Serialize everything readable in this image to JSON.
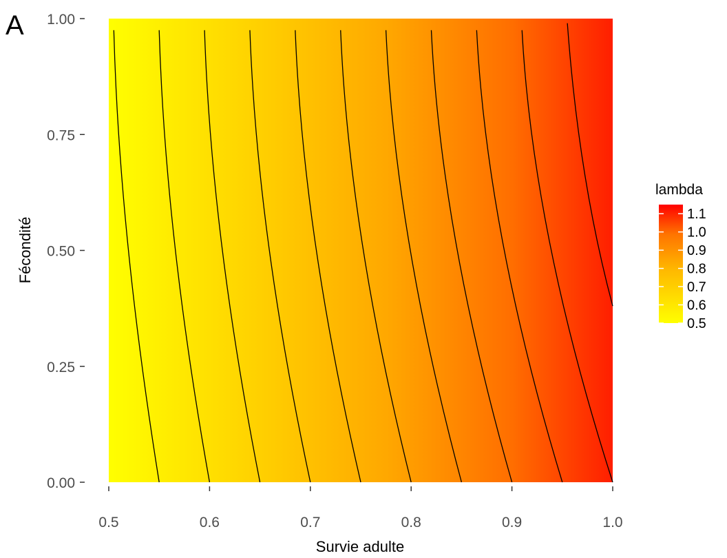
{
  "panel_label": "A",
  "chart_data": {
    "type": "heatmap",
    "title": "",
    "xlabel": "Survie adulte",
    "ylabel": "Fécondité",
    "xlim": [
      0.5,
      1.0
    ],
    "ylim": [
      0.0,
      1.0
    ],
    "x_ticks": [
      "0.5",
      "0.6",
      "0.7",
      "0.8",
      "0.9",
      "1.0"
    ],
    "y_ticks": [
      "0.00",
      "0.25",
      "0.50",
      "0.75",
      "1.00"
    ],
    "fill_variable": "lambda",
    "fill_range": [
      0.5,
      1.15
    ],
    "colormap": {
      "low": "#ffff00",
      "high": "#ff0000"
    },
    "legend": {
      "title": "lambda",
      "position": "right",
      "labels": [
        "1.1",
        "1.0",
        "0.9",
        "0.8",
        "0.7",
        "0.6",
        "0.5"
      ],
      "values": [
        1.1,
        1.0,
        0.9,
        0.8,
        0.7,
        0.6,
        0.5
      ]
    },
    "contour_lines": [
      {
        "x_at_fec_0": 0.55,
        "x_at_fec_1": 0.505
      },
      {
        "x_at_fec_0": 0.6,
        "x_at_fec_1": 0.55
      },
      {
        "x_at_fec_0": 0.65,
        "x_at_fec_1": 0.595
      },
      {
        "x_at_fec_0": 0.7,
        "x_at_fec_1": 0.64
      },
      {
        "x_at_fec_0": 0.75,
        "x_at_fec_1": 0.685
      },
      {
        "x_at_fec_0": 0.8,
        "x_at_fec_1": 0.73
      },
      {
        "x_at_fec_0": 0.85,
        "x_at_fec_1": 0.775
      },
      {
        "x_at_fec_0": 0.9,
        "x_at_fec_1": 0.82
      },
      {
        "x_at_fec_0": 0.95,
        "x_at_fec_1": 0.865
      },
      {
        "x_at_fec_0": 1.0,
        "x_at_fec_1": 0.91
      },
      {
        "x_at_fec_0": 1.0,
        "x_at_fec_1": 0.955,
        "fec_at_x_1": 0.38
      }
    ],
    "grid": false
  },
  "colors": {
    "tick_text": "#4d4d4d",
    "contour": "#000000",
    "background": "#ffffff"
  }
}
